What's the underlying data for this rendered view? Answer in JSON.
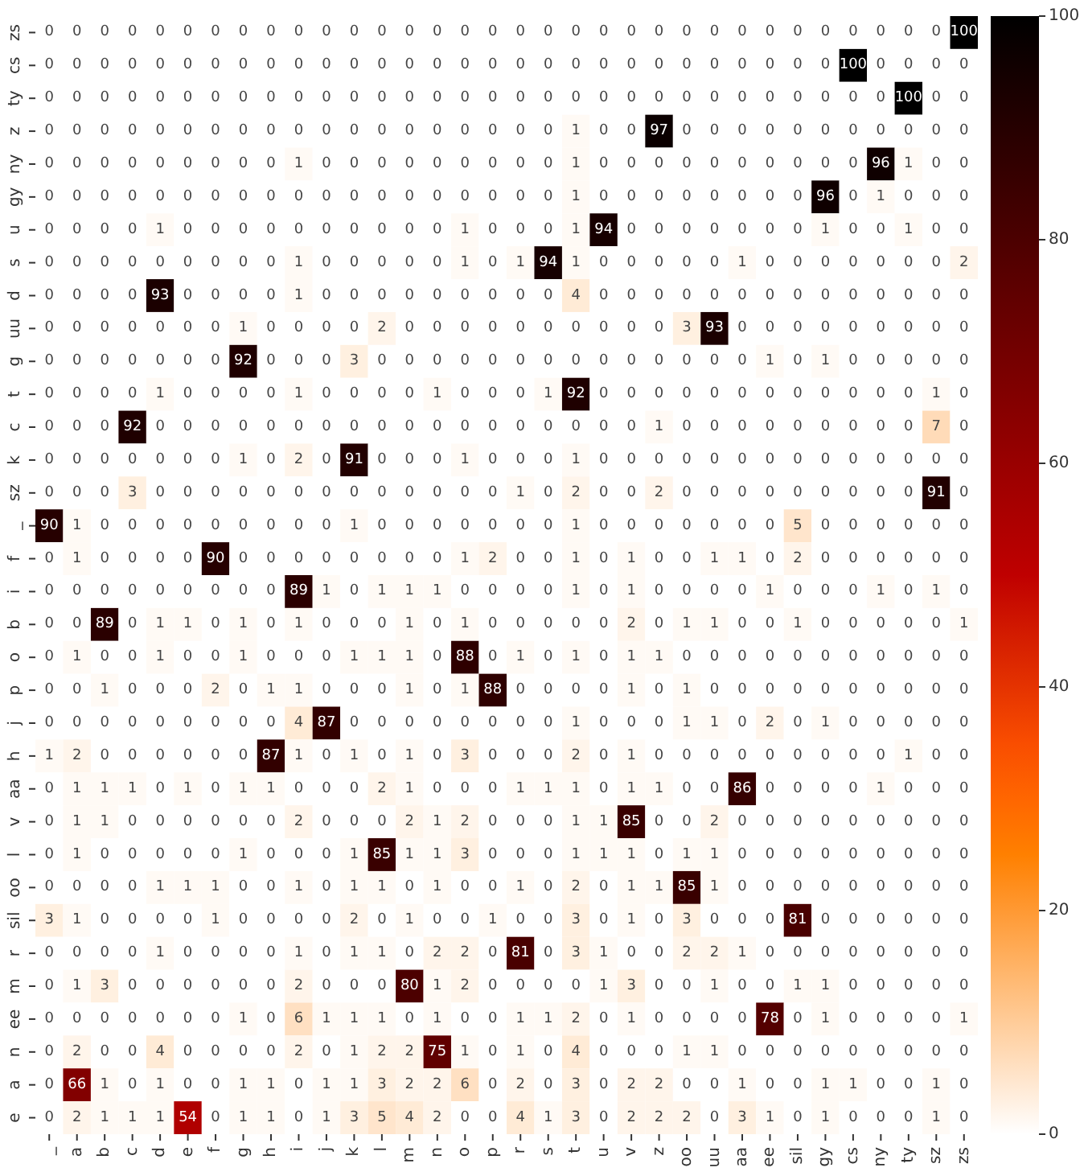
{
  "chart_data": {
    "type": "heatmap",
    "categories": [
      "_",
      "a",
      "b",
      "c",
      "d",
      "e",
      "f",
      "g",
      "h",
      "i",
      "j",
      "k",
      "l",
      "m",
      "n",
      "o",
      "p",
      "r",
      "s",
      "t",
      "u",
      "v",
      "z",
      "oo",
      "uu",
      "aa",
      "ee",
      "sil",
      "gy",
      "cs",
      "ny",
      "ty",
      "sz",
      "zs"
    ],
    "y_categories": [
      "zs",
      "cs",
      "ty",
      "z",
      "ny",
      "gy",
      "u",
      "s",
      "d",
      "uu",
      "g",
      "t",
      "c",
      "k",
      "sz",
      "_",
      "f",
      "i",
      "b",
      "o",
      "p",
      "j",
      "h",
      "aa",
      "v",
      "l",
      "oo",
      "sil",
      "r",
      "m",
      "ee",
      "n",
      "a",
      "e"
    ],
    "cells": [
      [
        0,
        0,
        0,
        0,
        0,
        0,
        0,
        0,
        0,
        0,
        0,
        0,
        0,
        0,
        0,
        0,
        0,
        0,
        0,
        0,
        0,
        0,
        0,
        0,
        0,
        0,
        0,
        0,
        0,
        0,
        0,
        0,
        0,
        100
      ],
      [
        0,
        0,
        0,
        0,
        0,
        0,
        0,
        0,
        0,
        0,
        0,
        0,
        0,
        0,
        0,
        0,
        0,
        0,
        0,
        0,
        0,
        0,
        0,
        0,
        0,
        0,
        0,
        0,
        0,
        100,
        0,
        0,
        0,
        0
      ],
      [
        0,
        0,
        0,
        0,
        0,
        0,
        0,
        0,
        0,
        0,
        0,
        0,
        0,
        0,
        0,
        0,
        0,
        0,
        0,
        0,
        0,
        0,
        0,
        0,
        0,
        0,
        0,
        0,
        0,
        0,
        0,
        100,
        0,
        0
      ],
      [
        0,
        0,
        0,
        0,
        0,
        0,
        0,
        0,
        0,
        0,
        0,
        0,
        0,
        0,
        0,
        0,
        0,
        0,
        0,
        1,
        0,
        0,
        97,
        0,
        0,
        0,
        0,
        0,
        0,
        0,
        0,
        0,
        0,
        0
      ],
      [
        0,
        0,
        0,
        0,
        0,
        0,
        0,
        0,
        0,
        1,
        0,
        0,
        0,
        0,
        0,
        0,
        0,
        0,
        0,
        1,
        0,
        0,
        0,
        0,
        0,
        0,
        0,
        0,
        0,
        0,
        96,
        1,
        0,
        0
      ],
      [
        0,
        0,
        0,
        0,
        0,
        0,
        0,
        0,
        0,
        0,
        0,
        0,
        0,
        0,
        0,
        0,
        0,
        0,
        0,
        1,
        0,
        0,
        0,
        0,
        0,
        0,
        0,
        0,
        96,
        0,
        1,
        0,
        0,
        0
      ],
      [
        0,
        0,
        0,
        0,
        1,
        0,
        0,
        0,
        0,
        0,
        0,
        0,
        0,
        0,
        0,
        1,
        0,
        0,
        0,
        1,
        94,
        0,
        0,
        0,
        0,
        0,
        0,
        0,
        1,
        0,
        0,
        1,
        0,
        0
      ],
      [
        0,
        0,
        0,
        0,
        0,
        0,
        0,
        0,
        0,
        1,
        0,
        0,
        0,
        0,
        0,
        1,
        0,
        1,
        94,
        1,
        0,
        0,
        0,
        0,
        0,
        1,
        0,
        0,
        0,
        0,
        0,
        0,
        0,
        2
      ],
      [
        0,
        0,
        0,
        0,
        93,
        0,
        0,
        0,
        0,
        1,
        0,
        0,
        0,
        0,
        0,
        0,
        0,
        0,
        0,
        4,
        0,
        0,
        0,
        0,
        0,
        0,
        0,
        0,
        0,
        0,
        0,
        0,
        0,
        0
      ],
      [
        0,
        0,
        0,
        0,
        0,
        0,
        0,
        1,
        0,
        0,
        0,
        0,
        2,
        0,
        0,
        0,
        0,
        0,
        0,
        0,
        0,
        0,
        0,
        3,
        93,
        0,
        0,
        0,
        0,
        0,
        0,
        0,
        0,
        0
      ],
      [
        0,
        0,
        0,
        0,
        0,
        0,
        0,
        92,
        0,
        0,
        0,
        3,
        0,
        0,
        0,
        0,
        0,
        0,
        0,
        0,
        0,
        0,
        0,
        0,
        0,
        0,
        1,
        0,
        1,
        0,
        0,
        0,
        0,
        0
      ],
      [
        0,
        0,
        0,
        0,
        1,
        0,
        0,
        0,
        0,
        1,
        0,
        0,
        0,
        0,
        1,
        0,
        0,
        0,
        1,
        92,
        0,
        0,
        0,
        0,
        0,
        0,
        0,
        0,
        0,
        0,
        0,
        0,
        1,
        0
      ],
      [
        0,
        0,
        0,
        92,
        0,
        0,
        0,
        0,
        0,
        0,
        0,
        0,
        0,
        0,
        0,
        0,
        0,
        0,
        0,
        0,
        0,
        0,
        1,
        0,
        0,
        0,
        0,
        0,
        0,
        0,
        0,
        0,
        7,
        0
      ],
      [
        0,
        0,
        0,
        0,
        0,
        0,
        0,
        1,
        0,
        2,
        0,
        91,
        0,
        0,
        0,
        1,
        0,
        0,
        0,
        1,
        0,
        0,
        0,
        0,
        0,
        0,
        0,
        0,
        0,
        0,
        0,
        0,
        0,
        0
      ],
      [
        0,
        0,
        0,
        3,
        0,
        0,
        0,
        0,
        0,
        0,
        0,
        0,
        0,
        0,
        0,
        0,
        0,
        1,
        0,
        2,
        0,
        0,
        2,
        0,
        0,
        0,
        0,
        0,
        0,
        0,
        0,
        0,
        91,
        0
      ],
      [
        90,
        1,
        0,
        0,
        0,
        0,
        0,
        0,
        0,
        0,
        0,
        1,
        0,
        0,
        0,
        0,
        0,
        0,
        0,
        1,
        0,
        0,
        0,
        0,
        0,
        0,
        0,
        5,
        0,
        0,
        0,
        0,
        0,
        0
      ],
      [
        0,
        1,
        0,
        0,
        0,
        0,
        90,
        0,
        0,
        0,
        0,
        0,
        0,
        0,
        0,
        1,
        2,
        0,
        0,
        1,
        0,
        1,
        0,
        0,
        1,
        1,
        0,
        2,
        0,
        0,
        0,
        0,
        0,
        0
      ],
      [
        0,
        0,
        0,
        0,
        0,
        0,
        0,
        0,
        0,
        89,
        1,
        0,
        1,
        1,
        1,
        0,
        0,
        0,
        0,
        1,
        0,
        1,
        0,
        0,
        0,
        0,
        1,
        0,
        0,
        0,
        1,
        0,
        1,
        0
      ],
      [
        0,
        0,
        89,
        0,
        1,
        1,
        0,
        1,
        0,
        1,
        0,
        0,
        0,
        1,
        0,
        1,
        0,
        0,
        0,
        0,
        0,
        2,
        0,
        1,
        1,
        0,
        0,
        1,
        0,
        0,
        0,
        0,
        0,
        1
      ],
      [
        0,
        1,
        0,
        0,
        1,
        0,
        0,
        1,
        0,
        0,
        0,
        1,
        1,
        1,
        0,
        88,
        0,
        1,
        0,
        1,
        0,
        1,
        1,
        0,
        0,
        0,
        0,
        0,
        0,
        0,
        0,
        0,
        0,
        0
      ],
      [
        0,
        0,
        1,
        0,
        0,
        0,
        2,
        0,
        1,
        1,
        0,
        0,
        0,
        1,
        0,
        1,
        88,
        0,
        0,
        0,
        0,
        1,
        0,
        1,
        0,
        0,
        0,
        0,
        0,
        0,
        0,
        0,
        0,
        0
      ],
      [
        0,
        0,
        0,
        0,
        0,
        0,
        0,
        0,
        0,
        4,
        87,
        0,
        0,
        0,
        0,
        0,
        0,
        0,
        0,
        1,
        0,
        0,
        0,
        1,
        1,
        0,
        2,
        0,
        1,
        0,
        0,
        0,
        0,
        0
      ],
      [
        1,
        2,
        0,
        0,
        0,
        0,
        0,
        0,
        87,
        1,
        0,
        1,
        0,
        1,
        0,
        3,
        0,
        0,
        0,
        2,
        0,
        1,
        0,
        0,
        0,
        0,
        0,
        0,
        0,
        0,
        0,
        1,
        0,
        0
      ],
      [
        0,
        1,
        1,
        1,
        0,
        1,
        0,
        1,
        1,
        0,
        0,
        0,
        2,
        1,
        0,
        0,
        0,
        1,
        1,
        1,
        0,
        1,
        1,
        0,
        0,
        86,
        0,
        0,
        0,
        0,
        1,
        0,
        0,
        0
      ],
      [
        0,
        1,
        1,
        0,
        0,
        0,
        0,
        0,
        0,
        2,
        0,
        0,
        0,
        2,
        1,
        2,
        0,
        0,
        0,
        1,
        1,
        85,
        0,
        0,
        2,
        0,
        0,
        0,
        0,
        0,
        0,
        0,
        0,
        0
      ],
      [
        0,
        1,
        0,
        0,
        0,
        0,
        0,
        1,
        0,
        0,
        0,
        1,
        85,
        1,
        1,
        3,
        0,
        0,
        0,
        1,
        1,
        1,
        0,
        1,
        1,
        0,
        0,
        0,
        0,
        0,
        0,
        0,
        0,
        0
      ],
      [
        0,
        0,
        0,
        0,
        1,
        1,
        1,
        0,
        0,
        1,
        0,
        1,
        1,
        0,
        1,
        0,
        0,
        1,
        0,
        2,
        0,
        1,
        1,
        85,
        1,
        0,
        0,
        0,
        0,
        0,
        0,
        0,
        0,
        0
      ],
      [
        3,
        1,
        0,
        0,
        0,
        0,
        1,
        0,
        0,
        0,
        0,
        2,
        0,
        1,
        0,
        0,
        1,
        0,
        0,
        3,
        0,
        1,
        0,
        3,
        0,
        0,
        0,
        81,
        0,
        0,
        0,
        0,
        0,
        0
      ],
      [
        0,
        0,
        0,
        0,
        1,
        0,
        0,
        0,
        0,
        1,
        0,
        1,
        1,
        0,
        2,
        2,
        0,
        81,
        0,
        3,
        1,
        0,
        0,
        2,
        2,
        1,
        0,
        0,
        0,
        0,
        0,
        0,
        0,
        0
      ],
      [
        0,
        1,
        3,
        0,
        0,
        0,
        0,
        0,
        0,
        2,
        0,
        0,
        0,
        80,
        1,
        2,
        0,
        0,
        0,
        0,
        1,
        3,
        0,
        0,
        1,
        0,
        0,
        1,
        1,
        0,
        0,
        0,
        0,
        0
      ],
      [
        0,
        0,
        0,
        0,
        0,
        0,
        0,
        1,
        0,
        6,
        1,
        1,
        1,
        0,
        1,
        0,
        0,
        1,
        1,
        2,
        0,
        1,
        0,
        0,
        0,
        0,
        78,
        0,
        1,
        0,
        0,
        0,
        0,
        1
      ],
      [
        0,
        2,
        0,
        0,
        4,
        0,
        0,
        0,
        0,
        2,
        0,
        1,
        2,
        2,
        75,
        1,
        0,
        1,
        0,
        4,
        0,
        0,
        0,
        1,
        1,
        0,
        0,
        0,
        0,
        0,
        0,
        0,
        0,
        0
      ],
      [
        0,
        66,
        1,
        0,
        1,
        0,
        0,
        1,
        1,
        0,
        1,
        1,
        3,
        2,
        2,
        6,
        0,
        2,
        0,
        3,
        0,
        2,
        2,
        0,
        0,
        1,
        0,
        0,
        1,
        1,
        0,
        0,
        1,
        0
      ],
      [
        0,
        2,
        1,
        1,
        1,
        54,
        0,
        1,
        1,
        0,
        1,
        3,
        5,
        4,
        2,
        0,
        0,
        4,
        1,
        3,
        0,
        2,
        2,
        2,
        0,
        3,
        1,
        0,
        1,
        0,
        0,
        0,
        1,
        0
      ]
    ],
    "clim": [
      0,
      100
    ],
    "cticks": [
      0,
      20,
      40,
      60,
      80,
      100
    ],
    "data_labels": true
  }
}
